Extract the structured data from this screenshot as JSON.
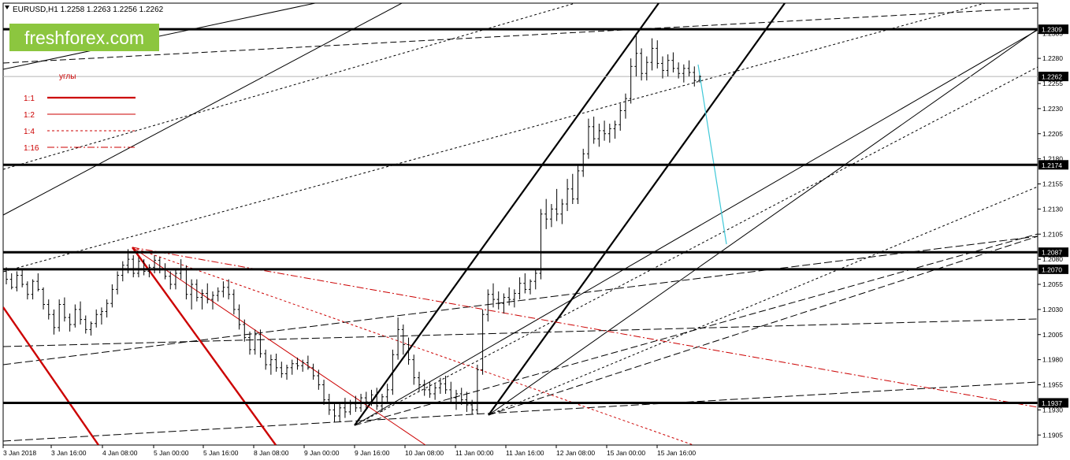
{
  "header": {
    "triangle_icon": "triangle-down-icon",
    "symbol_line": "EURUSD,H1  1.2258 1.2263 1.2256 1.2262"
  },
  "brand": {
    "name": "freshforex.com",
    "bg_color": "#8cc63f",
    "text_color": "#ffffff"
  },
  "legend": {
    "title": "углы",
    "color": "#cc0000",
    "items": [
      {
        "label": "1:1",
        "style": "solid-thick"
      },
      {
        "label": "1:2",
        "style": "solid"
      },
      {
        "label": "1:4",
        "style": "dashed"
      },
      {
        "label": "1:16",
        "style": "dash-dot"
      }
    ]
  },
  "chart_data": {
    "type": "candlestick",
    "symbol": "EURUSD",
    "timeframe": "H1",
    "ohlc_header": {
      "open": 1.2258,
      "high": 1.2263,
      "low": 1.2256,
      "close": 1.2262
    },
    "ylim": [
      1.1895,
      1.2335
    ],
    "y_ticks": [
      "1.2305",
      "1.2280",
      "1.2255",
      "1.2230",
      "1.2205",
      "1.2180",
      "1.2155",
      "1.2130",
      "1.2105",
      "1.2080",
      "1.2055",
      "1.2030",
      "1.2005",
      "1.1980",
      "1.1955",
      "1.1930",
      "1.1905"
    ],
    "x_ticks": [
      "3 Jan 2018",
      "3 Jan 16:00",
      "4 Jan 08:00",
      "5 Jan 00:00",
      "5 Jan 16:00",
      "8 Jan 08:00",
      "9 Jan 00:00",
      "9 Jan 16:00",
      "10 Jan 08:00",
      "11 Jan 00:00",
      "11 Jan 16:00",
      "12 Jan 08:00",
      "15 Jan 00:00",
      "15 Jan 16:00"
    ],
    "levels": [
      {
        "value": 1.2309,
        "label": "1.2309",
        "style": "thick"
      },
      {
        "value": 1.2262,
        "label": "1.2262",
        "style": "current"
      },
      {
        "value": 1.2174,
        "label": "1.2174",
        "style": "thick"
      },
      {
        "value": 1.2087,
        "label": "1.2087",
        "style": "thick"
      },
      {
        "value": 1.207,
        "label": "1.2070",
        "style": "thick"
      },
      {
        "value": 1.1937,
        "label": "1.1937",
        "style": "thick"
      }
    ],
    "candles": [
      [
        1.2068,
        1.2072,
        1.2055,
        1.206
      ],
      [
        1.206,
        1.2066,
        1.205,
        1.2052
      ],
      [
        1.2052,
        1.2068,
        1.2048,
        1.2064
      ],
      [
        1.2064,
        1.207,
        1.2052,
        1.2055
      ],
      [
        1.2055,
        1.2058,
        1.204,
        1.2045
      ],
      [
        1.2045,
        1.206,
        1.204,
        1.2058
      ],
      [
        1.2058,
        1.2066,
        1.2048,
        1.205
      ],
      [
        1.205,
        1.2052,
        1.203,
        1.2035
      ],
      [
        1.2035,
        1.204,
        1.202,
        1.2025
      ],
      [
        1.2025,
        1.203,
        1.2005,
        1.2012
      ],
      [
        1.2012,
        1.204,
        1.2008,
        1.2035
      ],
      [
        1.2035,
        1.2042,
        1.2018,
        1.2022
      ],
      [
        1.2022,
        1.2026,
        1.2008,
        1.2015
      ],
      [
        1.2015,
        1.2035,
        1.2012,
        1.203
      ],
      [
        1.203,
        1.2038,
        1.2015,
        1.202
      ],
      [
        1.202,
        1.2024,
        1.2006,
        1.201
      ],
      [
        1.201,
        1.2018,
        1.2004,
        1.2016
      ],
      [
        1.2016,
        1.203,
        1.2012,
        1.2025
      ],
      [
        1.2025,
        1.2032,
        1.2015,
        1.2028
      ],
      [
        1.2028,
        1.204,
        1.2022,
        1.2036
      ],
      [
        1.2036,
        1.2055,
        1.2032,
        1.205
      ],
      [
        1.205,
        1.2068,
        1.2045,
        1.2064
      ],
      [
        1.2064,
        1.2078,
        1.2058,
        1.2074
      ],
      [
        1.2074,
        1.209,
        1.2066,
        1.208
      ],
      [
        1.208,
        1.2084,
        1.2062,
        1.2066
      ],
      [
        1.2066,
        1.2082,
        1.2062,
        1.2078
      ],
      [
        1.2078,
        1.208,
        1.2064,
        1.2068
      ],
      [
        1.2068,
        1.2075,
        1.2062,
        1.2072
      ],
      [
        1.2072,
        1.2084,
        1.2066,
        1.2079
      ],
      [
        1.2079,
        1.2082,
        1.2066,
        1.207
      ],
      [
        1.207,
        1.2076,
        1.206,
        1.2063
      ],
      [
        1.2063,
        1.2068,
        1.205,
        1.2055
      ],
      [
        1.2055,
        1.207,
        1.205,
        1.2066
      ],
      [
        1.2066,
        1.208,
        1.206,
        1.207
      ],
      [
        1.207,
        1.2074,
        1.204,
        1.2045
      ],
      [
        1.2045,
        1.206,
        1.203,
        1.2055
      ],
      [
        1.2055,
        1.206,
        1.2038,
        1.2042
      ],
      [
        1.2042,
        1.205,
        1.203,
        1.2046
      ],
      [
        1.2046,
        1.2056,
        1.2036,
        1.204
      ],
      [
        1.204,
        1.2048,
        1.203,
        1.2044
      ],
      [
        1.2044,
        1.2052,
        1.2038,
        1.2048
      ],
      [
        1.2048,
        1.2058,
        1.2042,
        1.2052
      ],
      [
        1.2052,
        1.206,
        1.204,
        1.2045
      ],
      [
        1.2045,
        1.205,
        1.2025,
        1.203
      ],
      [
        1.203,
        1.2035,
        1.201,
        1.2015
      ],
      [
        1.2015,
        1.202,
        1.1998,
        1.2002
      ],
      [
        1.2002,
        1.2008,
        1.1985,
        1.199
      ],
      [
        1.199,
        1.201,
        1.1985,
        1.2005
      ],
      [
        1.2005,
        1.201,
        1.1982,
        1.1986
      ],
      [
        1.1986,
        1.199,
        1.197,
        1.1975
      ],
      [
        1.1975,
        1.1985,
        1.1965,
        1.198
      ],
      [
        1.198,
        1.1986,
        1.1968,
        1.1972
      ],
      [
        1.1972,
        1.1978,
        1.1962,
        1.1966
      ],
      [
        1.1966,
        1.1975,
        1.196,
        1.1972
      ],
      [
        1.1972,
        1.198,
        1.1965,
        1.1976
      ],
      [
        1.1976,
        1.1982,
        1.197,
        1.1974
      ],
      [
        1.1974,
        1.198,
        1.1968,
        1.1977
      ],
      [
        1.1977,
        1.1984,
        1.197,
        1.1972
      ],
      [
        1.1972,
        1.1976,
        1.196,
        1.1964
      ],
      [
        1.1964,
        1.197,
        1.195,
        1.1955
      ],
      [
        1.1955,
        1.196,
        1.1935,
        1.194
      ],
      [
        1.194,
        1.1946,
        1.1925,
        1.193
      ],
      [
        1.193,
        1.1938,
        1.1918,
        1.1924
      ],
      [
        1.1924,
        1.1936,
        1.1918,
        1.1932
      ],
      [
        1.1932,
        1.1942,
        1.1922,
        1.1928
      ],
      [
        1.1928,
        1.194,
        1.1925,
        1.1936
      ],
      [
        1.1936,
        1.1944,
        1.1928,
        1.1932
      ],
      [
        1.1932,
        1.1946,
        1.1928,
        1.1942
      ],
      [
        1.1942,
        1.1948,
        1.1932,
        1.1938
      ],
      [
        1.1938,
        1.195,
        1.1934,
        1.1945
      ],
      [
        1.1945,
        1.1952,
        1.193,
        1.1934
      ],
      [
        1.1934,
        1.1946,
        1.1928,
        1.1943
      ],
      [
        1.1943,
        1.1956,
        1.1938,
        1.195
      ],
      [
        1.195,
        1.199,
        1.1945,
        1.1985
      ],
      [
        1.1985,
        1.2022,
        1.198,
        1.201
      ],
      [
        1.201,
        1.2015,
        1.1985,
        1.1995
      ],
      [
        1.1995,
        1.2002,
        1.1975,
        1.198
      ],
      [
        1.198,
        1.1985,
        1.1955,
        1.1962
      ],
      [
        1.1962,
        1.1968,
        1.1948,
        1.1955
      ],
      [
        1.1955,
        1.196,
        1.1944,
        1.195
      ],
      [
        1.195,
        1.1958,
        1.1942,
        1.1946
      ],
      [
        1.1946,
        1.1956,
        1.194,
        1.1952
      ],
      [
        1.1952,
        1.1962,
        1.1946,
        1.1956
      ],
      [
        1.1956,
        1.1964,
        1.1946,
        1.195
      ],
      [
        1.195,
        1.1958,
        1.1938,
        1.1942
      ],
      [
        1.1942,
        1.195,
        1.193,
        1.1946
      ],
      [
        1.1946,
        1.1952,
        1.1935,
        1.194
      ],
      [
        1.194,
        1.1948,
        1.1928,
        1.1935
      ],
      [
        1.1935,
        1.194,
        1.1926,
        1.193
      ],
      [
        1.193,
        1.1975,
        1.1926,
        1.197
      ],
      [
        1.197,
        1.203,
        1.1965,
        1.2025
      ],
      [
        1.2025,
        1.205,
        1.2018,
        1.2045
      ],
      [
        1.2045,
        1.2056,
        1.2032,
        1.204
      ],
      [
        1.204,
        1.2048,
        1.203,
        1.2036
      ],
      [
        1.2036,
        1.2046,
        1.2026,
        1.2042
      ],
      [
        1.2042,
        1.2052,
        1.2034,
        1.204
      ],
      [
        1.204,
        1.205,
        1.2032,
        1.2046
      ],
      [
        1.2046,
        1.2062,
        1.204,
        1.2056
      ],
      [
        1.2056,
        1.2066,
        1.2046,
        1.205
      ],
      [
        1.205,
        1.206,
        1.2045,
        1.2058
      ],
      [
        1.2058,
        1.207,
        1.205,
        1.2066
      ],
      [
        1.2066,
        1.213,
        1.206,
        1.2125
      ],
      [
        1.2125,
        1.214,
        1.211,
        1.212
      ],
      [
        1.212,
        1.2135,
        1.2112,
        1.213
      ],
      [
        1.213,
        1.215,
        1.2118,
        1.2125
      ],
      [
        1.2125,
        1.214,
        1.2115,
        1.2135
      ],
      [
        1.2135,
        1.216,
        1.2128,
        1.215
      ],
      [
        1.215,
        1.2165,
        1.2135,
        1.214
      ],
      [
        1.214,
        1.2175,
        1.2135,
        1.2168
      ],
      [
        1.2168,
        1.219,
        1.2162,
        1.2185
      ],
      [
        1.2185,
        1.222,
        1.218,
        1.2212
      ],
      [
        1.2212,
        1.2222,
        1.2195,
        1.22
      ],
      [
        1.22,
        1.2215,
        1.2192,
        1.2208
      ],
      [
        1.2208,
        1.2218,
        1.2198,
        1.2205
      ],
      [
        1.2205,
        1.2215,
        1.2196,
        1.221
      ],
      [
        1.221,
        1.2218,
        1.22,
        1.2214
      ],
      [
        1.2214,
        1.2235,
        1.2208,
        1.2228
      ],
      [
        1.2228,
        1.2245,
        1.222,
        1.224
      ],
      [
        1.224,
        1.228,
        1.2235,
        1.2272
      ],
      [
        1.2272,
        1.2305,
        1.2262,
        1.2285
      ],
      [
        1.2285,
        1.229,
        1.2258,
        1.2265
      ],
      [
        1.2265,
        1.2282,
        1.2258,
        1.2276
      ],
      [
        1.2276,
        1.23,
        1.2268,
        1.229
      ],
      [
        1.229,
        1.2298,
        1.227,
        1.2275
      ],
      [
        1.2275,
        1.2282,
        1.226,
        1.2268
      ],
      [
        1.2268,
        1.2284,
        1.2262,
        1.2278
      ],
      [
        1.2278,
        1.2286,
        1.2266,
        1.227
      ],
      [
        1.227,
        1.2276,
        1.226,
        1.2265
      ],
      [
        1.2265,
        1.2274,
        1.2256,
        1.227
      ],
      [
        1.227,
        1.2278,
        1.2262,
        1.2266
      ],
      [
        1.2266,
        1.2272,
        1.2252,
        1.2258
      ],
      [
        1.2258,
        1.2263,
        1.2256,
        1.2262
      ]
    ]
  }
}
